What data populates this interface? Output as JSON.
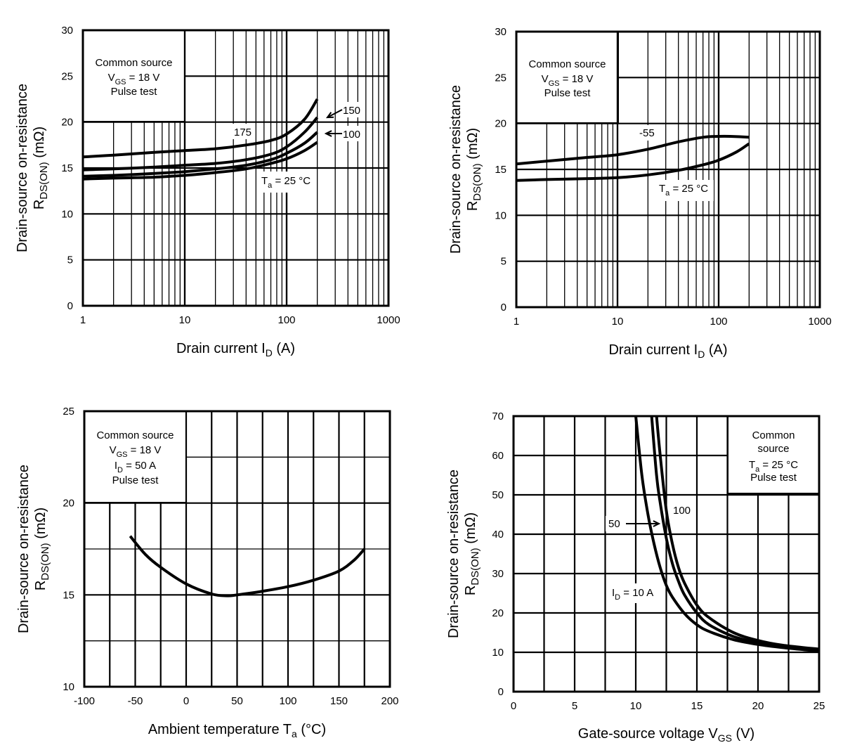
{
  "chart_data": [
    {
      "id": "rds-vs-id-high-temp",
      "type": "line",
      "xscale": "log",
      "xlim": [
        1,
        1000
      ],
      "ylim": [
        0,
        30
      ],
      "xticks": [
        1,
        10,
        100,
        1000
      ],
      "yticks": [
        0,
        5,
        10,
        15,
        20,
        25,
        30
      ],
      "xlabel": {
        "main": "Drain current  I",
        "sub": "D",
        "unit": "(A)"
      },
      "ylabel": {
        "line1": "Drain-source on-resistance",
        "line2_main": "R",
        "line2_sub": "DS(ON)",
        "line2_unit": "(mΩ)"
      },
      "grid": true,
      "legend_box": {
        "position": "top-left",
        "lines": [
          {
            "main": "Common source",
            "sub": "",
            "tail": ""
          },
          {
            "main": "V",
            "sub": "GS",
            "tail": "  = 18 V"
          },
          {
            "main": "Pulse test",
            "sub": "",
            "tail": ""
          }
        ]
      },
      "series": [
        {
          "name": "175",
          "x": [
            1,
            2,
            5,
            10,
            20,
            40,
            70,
            100,
            150,
            200
          ],
          "y": [
            16.2,
            16.4,
            16.7,
            16.9,
            17.1,
            17.5,
            18.0,
            18.7,
            20.3,
            22.5
          ]
        },
        {
          "name": "150",
          "x": [
            1,
            2,
            5,
            10,
            20,
            40,
            70,
            100,
            150,
            200
          ],
          "y": [
            14.8,
            14.9,
            15.1,
            15.3,
            15.5,
            15.9,
            16.5,
            17.3,
            18.9,
            20.5
          ]
        },
        {
          "name": "100",
          "x": [
            1,
            2,
            5,
            10,
            20,
            40,
            70,
            100,
            150,
            200
          ],
          "y": [
            14.1,
            14.2,
            14.4,
            14.6,
            14.9,
            15.3,
            15.9,
            16.6,
            17.7,
            18.9
          ]
        },
        {
          "name": "25",
          "x": [
            1,
            2,
            5,
            10,
            20,
            40,
            70,
            100,
            150,
            200
          ],
          "y": [
            13.8,
            13.9,
            14.0,
            14.2,
            14.5,
            14.9,
            15.5,
            16.0,
            16.9,
            17.8
          ]
        }
      ],
      "annotations": [
        {
          "text": "175",
          "sub": "",
          "tail": ""
        },
        {
          "text": "150",
          "sub": "",
          "tail": ""
        },
        {
          "text": "100",
          "sub": "",
          "tail": ""
        },
        {
          "text": "T",
          "sub": "a",
          "tail": " = 25 °C"
        }
      ]
    },
    {
      "id": "rds-vs-id-low-temp",
      "type": "line",
      "xscale": "log",
      "xlim": [
        1,
        1000
      ],
      "ylim": [
        0,
        30
      ],
      "xticks": [
        1,
        10,
        100,
        1000
      ],
      "yticks": [
        0,
        5,
        10,
        15,
        20,
        25,
        30
      ],
      "xlabel": {
        "main": "Drain current  I",
        "sub": "D",
        "unit": "(A)"
      },
      "ylabel": {
        "line1": "Drain-source on-resistance",
        "line2_main": "R",
        "line2_sub": "DS(ON)",
        "line2_unit": "(mΩ)"
      },
      "grid": true,
      "legend_box": {
        "position": "top-left",
        "lines": [
          {
            "main": "Common source",
            "sub": "",
            "tail": ""
          },
          {
            "main": "V",
            "sub": "GS",
            "tail": "  = 18 V"
          },
          {
            "main": "Pulse test",
            "sub": "",
            "tail": ""
          }
        ]
      },
      "series": [
        {
          "name": "-55",
          "x": [
            1,
            2,
            5,
            10,
            20,
            40,
            70,
            100,
            130,
            200
          ],
          "y": [
            15.6,
            15.9,
            16.3,
            16.6,
            17.2,
            18.0,
            18.5,
            18.6,
            18.6,
            18.5
          ]
        },
        {
          "name": "25",
          "x": [
            1,
            2,
            5,
            10,
            20,
            40,
            70,
            100,
            150,
            200
          ],
          "y": [
            13.8,
            13.9,
            14.0,
            14.1,
            14.4,
            14.9,
            15.5,
            16.0,
            16.9,
            17.8
          ]
        }
      ],
      "annotations": [
        {
          "text": "-55",
          "sub": "",
          "tail": ""
        },
        {
          "text": "T",
          "sub": "a",
          "tail": " = 25 °C"
        }
      ]
    },
    {
      "id": "rds-vs-ta",
      "type": "line",
      "xscale": "linear",
      "xlim": [
        -100,
        200
      ],
      "ylim": [
        10,
        25
      ],
      "xticks": [
        -100,
        -50,
        0,
        50,
        100,
        150,
        200
      ],
      "yticks": [
        10,
        15,
        20,
        25
      ],
      "xlabel": {
        "main": "Ambient temperature  T",
        "sub": "a",
        "unit": "(°C)"
      },
      "ylabel": {
        "line1": "Drain-source on-resistance",
        "line2_main": "R",
        "line2_sub": "DS(ON)",
        "line2_unit": "(mΩ)"
      },
      "grid": true,
      "legend_box": {
        "position": "top-left",
        "lines": [
          {
            "main": "Common source",
            "sub": "",
            "tail": ""
          },
          {
            "main": "V",
            "sub": "GS",
            "tail": "  = 18 V"
          },
          {
            "main": "I",
            "sub": "D",
            "tail": " = 50 A"
          },
          {
            "main": "Pulse test",
            "sub": "",
            "tail": ""
          }
        ]
      },
      "series": [
        {
          "name": "ID = 50 A",
          "x": [
            -55,
            -40,
            -25,
            0,
            25,
            40,
            50,
            75,
            100,
            125,
            150,
            165,
            175
          ],
          "y": [
            18.2,
            17.2,
            16.5,
            15.6,
            15.05,
            14.95,
            15.0,
            15.2,
            15.45,
            15.8,
            16.3,
            16.9,
            17.5
          ]
        }
      ],
      "annotations": []
    },
    {
      "id": "rds-vs-vgs",
      "type": "line",
      "xscale": "linear",
      "xlim": [
        0,
        25
      ],
      "ylim": [
        0,
        70
      ],
      "xticks": [
        0,
        5,
        10,
        15,
        20,
        25
      ],
      "yticks": [
        0,
        10,
        20,
        30,
        40,
        50,
        60,
        70
      ],
      "xlabel": {
        "main": "Gate-source voltage  V",
        "sub": "GS",
        "unit": "(V)"
      },
      "ylabel": {
        "line1": "Drain-source on-resistance",
        "line2_main": "R",
        "line2_sub": "DS(ON)",
        "line2_unit": "(mΩ)"
      },
      "grid": true,
      "legend_box": {
        "position": "top-right",
        "lines": [
          {
            "main": "Common",
            "sub": "",
            "tail": ""
          },
          {
            "main": "source",
            "sub": "",
            "tail": ""
          },
          {
            "main": "T",
            "sub": "a",
            "tail": " = 25 °C"
          },
          {
            "main": "Pulse test",
            "sub": "",
            "tail": ""
          }
        ]
      },
      "series": [
        {
          "name": "10",
          "x": [
            10.0,
            10.5,
            11.0,
            11.5,
            12.0,
            12.5,
            13.0,
            14.0,
            15.0,
            16.0,
            18.0,
            20.0,
            22.0,
            25.0
          ],
          "y": [
            70,
            55,
            45,
            37.5,
            31.5,
            27,
            24,
            19.8,
            17,
            15.3,
            13.2,
            12.0,
            11.2,
            10.3
          ]
        },
        {
          "name": "50",
          "x": [
            11.3,
            11.7,
            12.0,
            12.5,
            13.0,
            13.5,
            14.0,
            15.0,
            16.0,
            18.0,
            20.0,
            22.0,
            25.0
          ],
          "y": [
            70,
            55,
            48,
            39,
            32.5,
            28,
            24.5,
            20,
            17,
            14,
            12.5,
            11.5,
            10.5
          ]
        },
        {
          "name": "100",
          "x": [
            11.7,
            12.0,
            12.5,
            13.0,
            13.5,
            14.0,
            15.0,
            16.0,
            18.0,
            20.0,
            22.0,
            25.0
          ],
          "y": [
            70,
            60,
            46,
            37.5,
            31.5,
            27.5,
            22,
            18.8,
            15,
            13,
            11.8,
            10.8
          ]
        }
      ],
      "annotations": [
        {
          "text": "100",
          "sub": "",
          "tail": ""
        },
        {
          "text": "50",
          "sub": "",
          "tail": ""
        },
        {
          "text": "I",
          "sub": "D",
          "tail": " = 10 A"
        }
      ]
    }
  ]
}
